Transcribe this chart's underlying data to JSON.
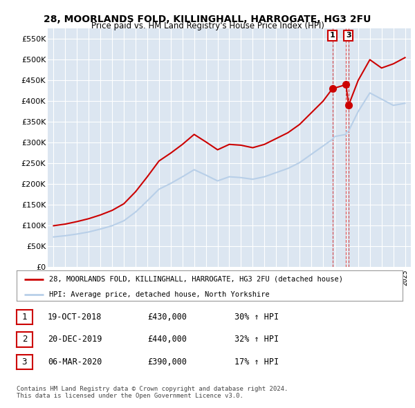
{
  "title": "28, MOORLANDS FOLD, KILLINGHALL, HARROGATE, HG3 2FU",
  "subtitle": "Price paid vs. HM Land Registry's House Price Index (HPI)",
  "background_color": "#ffffff",
  "plot_bg_color": "#dce6f1",
  "grid_color": "#ffffff",
  "ylim": [
    0,
    575000
  ],
  "yticks": [
    0,
    50000,
    100000,
    150000,
    200000,
    250000,
    300000,
    350000,
    400000,
    450000,
    500000,
    550000
  ],
  "ytick_labels": [
    "£0",
    "£50K",
    "£100K",
    "£150K",
    "£200K",
    "£250K",
    "£300K",
    "£350K",
    "£400K",
    "£450K",
    "£500K",
    "£550K"
  ],
  "hpi_color": "#b8cfe8",
  "price_color": "#cc0000",
  "transactions": [
    {
      "date_num": 2018.8,
      "price": 430000,
      "label": "1"
    },
    {
      "date_num": 2019.97,
      "price": 440000,
      "label": "2"
    },
    {
      "date_num": 2020.18,
      "price": 390000,
      "label": "3"
    }
  ],
  "hpi_years": [
    1995,
    1996,
    1997,
    1998,
    1999,
    2000,
    2001,
    2002,
    2003,
    2004,
    2005,
    2006,
    2007,
    2008,
    2009,
    2010,
    2011,
    2012,
    2013,
    2014,
    2015,
    2016,
    2017,
    2018,
    2018.8,
    2019,
    2019.97,
    2020,
    2020.18,
    2021,
    2022,
    2023,
    2024,
    2025
  ],
  "hpi_values": [
    73000,
    76000,
    80000,
    85000,
    92000,
    100000,
    112000,
    133000,
    160000,
    188000,
    202000,
    218000,
    235000,
    222000,
    208000,
    218000,
    216000,
    212000,
    218000,
    228000,
    238000,
    252000,
    272000,
    292000,
    308000,
    315000,
    320000,
    325000,
    328000,
    375000,
    420000,
    405000,
    390000,
    395000
  ],
  "price_years": [
    1995,
    1996,
    1997,
    1998,
    1999,
    2000,
    2001,
    2002,
    2003,
    2004,
    2005,
    2006,
    2007,
    2008,
    2009,
    2010,
    2011,
    2012,
    2013,
    2014,
    2015,
    2016,
    2017,
    2018,
    2018.8,
    2019.97,
    2020.18,
    2021,
    2022,
    2023,
    2024,
    2025
  ],
  "price_values": [
    100000,
    104000,
    110000,
    117000,
    126000,
    137000,
    153000,
    182000,
    218000,
    256000,
    275000,
    296000,
    320000,
    302000,
    283000,
    296000,
    294000,
    288000,
    296000,
    310000,
    324000,
    344000,
    372000,
    400000,
    430000,
    440000,
    390000,
    450000,
    500000,
    480000,
    490000,
    505000
  ],
  "table_rows": [
    {
      "num": "1",
      "date": "19-OCT-2018",
      "price": "£430,000",
      "hpi": "30% ↑ HPI"
    },
    {
      "num": "2",
      "date": "20-DEC-2019",
      "price": "£440,000",
      "hpi": "32% ↑ HPI"
    },
    {
      "num": "3",
      "date": "06-MAR-2020",
      "price": "£390,000",
      "hpi": "17% ↑ HPI"
    }
  ],
  "footer": "Contains HM Land Registry data © Crown copyright and database right 2024.\nThis data is licensed under the Open Government Licence v3.0.",
  "legend_line1": "28, MOORLANDS FOLD, KILLINGHALL, HARROGATE, HG3 2FU (detached house)",
  "legend_line2": "HPI: Average price, detached house, North Yorkshire"
}
